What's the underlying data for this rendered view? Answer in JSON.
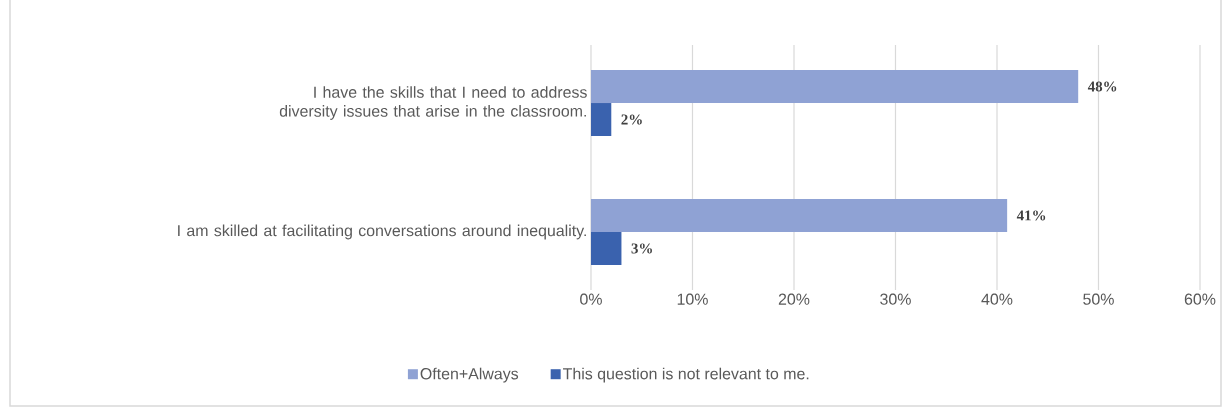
{
  "chart_data": {
    "type": "bar",
    "orientation": "horizontal",
    "categories": [
      "I have the skills that I need to address diversity issues that arise in the classroom.",
      "I am skilled at facilitating conversations around inequality."
    ],
    "series": [
      {
        "name": "Often+Always",
        "color": "#8fa2d4",
        "values": [
          48,
          41
        ],
        "value_labels": [
          "48%",
          "41%"
        ]
      },
      {
        "name": "This question is not relevant to me.",
        "color": "#3a62ae",
        "values": [
          2,
          3
        ],
        "value_labels": [
          "2%",
          "3%"
        ]
      }
    ],
    "xlim": [
      0,
      60
    ],
    "xticks": [
      {
        "value": 0,
        "label": "0%"
      },
      {
        "value": 10,
        "label": "10%"
      },
      {
        "value": 20,
        "label": "20%"
      },
      {
        "value": 30,
        "label": "30%"
      },
      {
        "value": 40,
        "label": "40%"
      },
      {
        "value": 50,
        "label": "50%"
      },
      {
        "value": 60,
        "label": "60%"
      }
    ],
    "grid": "x",
    "legend": "bottom"
  }
}
